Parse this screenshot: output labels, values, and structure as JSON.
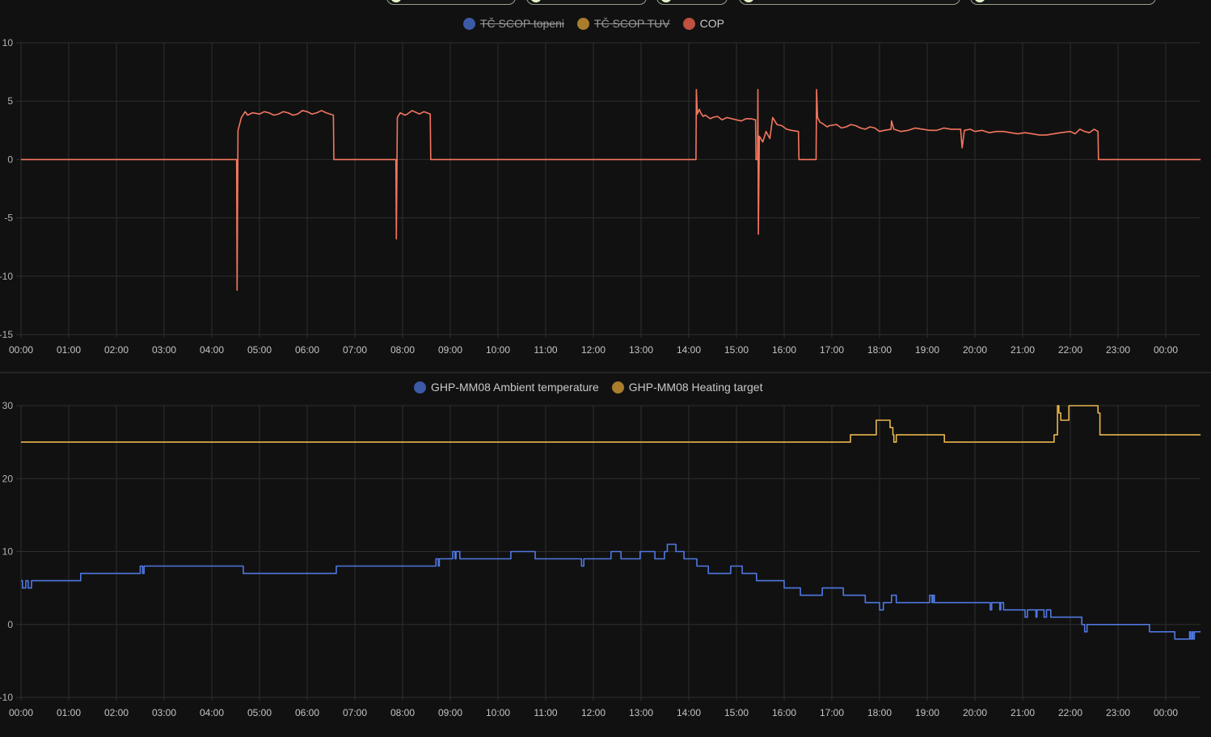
{
  "chart_data": [
    {
      "type": "line",
      "title": "",
      "xlabel": "",
      "ylabel": "",
      "x_unit": "hours since 00:00",
      "xlim": [
        0,
        24.73
      ],
      "ylim": [
        -15,
        10
      ],
      "yticks": [
        10,
        5,
        0,
        -5,
        -10,
        -15
      ],
      "xtick_labels": [
        "00:00",
        "01:00",
        "02:00",
        "03:00",
        "04:00",
        "05:00",
        "06:00",
        "07:00",
        "08:00",
        "09:00",
        "10:00",
        "11:00",
        "12:00",
        "13:00",
        "14:00",
        "15:00",
        "16:00",
        "17:00",
        "18:00",
        "19:00",
        "20:00",
        "21:00",
        "22:00",
        "23:00",
        "00:00"
      ],
      "grid": true,
      "legend_placement": "top-center",
      "legend": [
        {
          "name": "TČ SCOP topeni",
          "color": "#3b5aa8",
          "hidden": true
        },
        {
          "name": "TČ SCOP TUV",
          "color": "#a97d2c",
          "hidden": true
        },
        {
          "name": "COP",
          "color": "#c0503f",
          "hidden": false
        }
      ],
      "series": [
        {
          "name": "COP",
          "color": "#f4765f",
          "step": false,
          "points": [
            [
              0,
              0
            ],
            [
              4.52,
              0
            ],
            [
              4.53,
              -11.2
            ],
            [
              4.55,
              2.5
            ],
            [
              4.62,
              3.6
            ],
            [
              4.7,
              4.1
            ],
            [
              4.75,
              3.8
            ],
            [
              4.85,
              4.0
            ],
            [
              5.0,
              3.9
            ],
            [
              5.1,
              4.1
            ],
            [
              5.2,
              4.0
            ],
            [
              5.3,
              3.8
            ],
            [
              5.4,
              3.9
            ],
            [
              5.5,
              4.1
            ],
            [
              5.6,
              4.0
            ],
            [
              5.7,
              3.8
            ],
            [
              5.8,
              3.9
            ],
            [
              5.9,
              4.2
            ],
            [
              6.0,
              4.1
            ],
            [
              6.1,
              3.9
            ],
            [
              6.2,
              4.0
            ],
            [
              6.3,
              4.2
            ],
            [
              6.4,
              4.0
            ],
            [
              6.55,
              3.8
            ],
            [
              6.56,
              0
            ],
            [
              7.86,
              0
            ],
            [
              7.87,
              -6.8
            ],
            [
              7.89,
              3.6
            ],
            [
              7.95,
              4.0
            ],
            [
              8.05,
              3.8
            ],
            [
              8.1,
              3.9
            ],
            [
              8.2,
              4.2
            ],
            [
              8.3,
              4.0
            ],
            [
              8.35,
              3.9
            ],
            [
              8.45,
              4.1
            ],
            [
              8.58,
              3.9
            ],
            [
              8.59,
              0
            ],
            [
              14.15,
              0
            ],
            [
              14.16,
              6.0
            ],
            [
              14.18,
              3.9
            ],
            [
              14.22,
              4.3
            ],
            [
              14.25,
              4.0
            ],
            [
              14.3,
              3.7
            ],
            [
              14.35,
              3.8
            ],
            [
              14.45,
              3.5
            ],
            [
              14.5,
              3.6
            ],
            [
              14.6,
              3.7
            ],
            [
              14.7,
              3.4
            ],
            [
              14.8,
              3.6
            ],
            [
              14.9,
              3.5
            ],
            [
              15.0,
              3.4
            ],
            [
              15.1,
              3.3
            ],
            [
              15.2,
              3.5
            ],
            [
              15.3,
              3.5
            ],
            [
              15.4,
              3.4
            ],
            [
              15.41,
              0
            ],
            [
              15.44,
              0
            ],
            [
              15.45,
              6.0
            ],
            [
              15.46,
              -6.4
            ],
            [
              15.48,
              2.0
            ],
            [
              15.55,
              1.5
            ],
            [
              15.62,
              2.4
            ],
            [
              15.7,
              1.8
            ],
            [
              15.76,
              3.6
            ],
            [
              15.85,
              3.0
            ],
            [
              15.95,
              2.9
            ],
            [
              16.05,
              2.6
            ],
            [
              16.15,
              2.5
            ],
            [
              16.3,
              2.4
            ],
            [
              16.31,
              0
            ],
            [
              16.67,
              0
            ],
            [
              16.68,
              6.0
            ],
            [
              16.7,
              3.6
            ],
            [
              16.75,
              3.2
            ],
            [
              16.8,
              3.1
            ],
            [
              16.9,
              2.8
            ],
            [
              16.95,
              2.9
            ],
            [
              17.1,
              3.0
            ],
            [
              17.2,
              2.7
            ],
            [
              17.3,
              2.8
            ],
            [
              17.4,
              3.0
            ],
            [
              17.5,
              2.9
            ],
            [
              17.6,
              2.7
            ],
            [
              17.7,
              2.6
            ],
            [
              17.8,
              2.8
            ],
            [
              17.9,
              2.7
            ],
            [
              18.0,
              2.4
            ],
            [
              18.1,
              2.5
            ],
            [
              18.24,
              2.6
            ],
            [
              18.25,
              3.3
            ],
            [
              18.3,
              2.6
            ],
            [
              18.45,
              2.4
            ],
            [
              18.6,
              2.5
            ],
            [
              18.75,
              2.7
            ],
            [
              18.9,
              2.6
            ],
            [
              19.05,
              2.5
            ],
            [
              19.2,
              2.5
            ],
            [
              19.35,
              2.7
            ],
            [
              19.5,
              2.6
            ],
            [
              19.7,
              2.6
            ],
            [
              19.73,
              1.0
            ],
            [
              19.78,
              2.5
            ],
            [
              19.9,
              2.6
            ],
            [
              20.0,
              2.4
            ],
            [
              20.15,
              2.5
            ],
            [
              20.3,
              2.3
            ],
            [
              20.45,
              2.4
            ],
            [
              20.6,
              2.4
            ],
            [
              20.75,
              2.3
            ],
            [
              20.9,
              2.2
            ],
            [
              21.05,
              2.3
            ],
            [
              21.2,
              2.2
            ],
            [
              21.35,
              2.1
            ],
            [
              21.5,
              2.1
            ],
            [
              21.65,
              2.2
            ],
            [
              21.8,
              2.3
            ],
            [
              22.0,
              2.4
            ],
            [
              22.1,
              2.2
            ],
            [
              22.2,
              2.6
            ],
            [
              22.3,
              2.4
            ],
            [
              22.4,
              2.3
            ],
            [
              22.5,
              2.6
            ],
            [
              22.58,
              2.4
            ],
            [
              22.59,
              0
            ],
            [
              24.73,
              0
            ]
          ]
        }
      ]
    },
    {
      "type": "line",
      "title": "",
      "xlabel": "",
      "ylabel": "",
      "x_unit": "hours since 00:00",
      "xlim": [
        0,
        24.73
      ],
      "ylim": [
        -10,
        30
      ],
      "yticks": [
        30,
        20,
        10,
        0,
        -10
      ],
      "xtick_labels": [
        "00:00",
        "01:00",
        "02:00",
        "03:00",
        "04:00",
        "05:00",
        "06:00",
        "07:00",
        "08:00",
        "09:00",
        "10:00",
        "11:00",
        "12:00",
        "13:00",
        "14:00",
        "15:00",
        "16:00",
        "17:00",
        "18:00",
        "19:00",
        "20:00",
        "21:00",
        "22:00",
        "23:00",
        "00:00"
      ],
      "grid": true,
      "legend_placement": "top-center",
      "legend": [
        {
          "name": "GHP-MM08 Ambient temperature",
          "color": "#3b5aa8",
          "hidden": false
        },
        {
          "name": "GHP-MM08 Heating target",
          "color": "#a97d2c",
          "hidden": false
        }
      ],
      "series": [
        {
          "name": "GHP-MM08 Ambient temperature",
          "color": "#4f78e0",
          "step": true,
          "points": [
            [
              0,
              6
            ],
            [
              0.03,
              5
            ],
            [
              0.1,
              6
            ],
            [
              0.15,
              5
            ],
            [
              0.22,
              6
            ],
            [
              1.25,
              7
            ],
            [
              2.5,
              8
            ],
            [
              2.55,
              7
            ],
            [
              2.58,
              8
            ],
            [
              4.66,
              7
            ],
            [
              6.61,
              8
            ],
            [
              8.7,
              9
            ],
            [
              8.75,
              8
            ],
            [
              8.77,
              9
            ],
            [
              9.05,
              10
            ],
            [
              9.1,
              9
            ],
            [
              9.12,
              10
            ],
            [
              9.2,
              9
            ],
            [
              10.27,
              10
            ],
            [
              10.78,
              9
            ],
            [
              11.75,
              8
            ],
            [
              11.8,
              9
            ],
            [
              12.37,
              10
            ],
            [
              12.58,
              9
            ],
            [
              12.98,
              10
            ],
            [
              13.29,
              9
            ],
            [
              13.49,
              10
            ],
            [
              13.55,
              11
            ],
            [
              13.73,
              10
            ],
            [
              13.9,
              9
            ],
            [
              14.17,
              8
            ],
            [
              14.41,
              7
            ],
            [
              14.88,
              8
            ],
            [
              15.12,
              7
            ],
            [
              15.42,
              6
            ],
            [
              16.0,
              5
            ],
            [
              16.34,
              4
            ],
            [
              16.8,
              5
            ],
            [
              17.24,
              4
            ],
            [
              17.7,
              3
            ],
            [
              18.0,
              2
            ],
            [
              18.08,
              3
            ],
            [
              18.25,
              4
            ],
            [
              18.35,
              3
            ],
            [
              19.05,
              4
            ],
            [
              19.1,
              3
            ],
            [
              19.12,
              4
            ],
            [
              19.15,
              3
            ],
            [
              20.32,
              2
            ],
            [
              20.35,
              3
            ],
            [
              20.52,
              2
            ],
            [
              20.54,
              3
            ],
            [
              20.6,
              2
            ],
            [
              21.05,
              1
            ],
            [
              21.1,
              2
            ],
            [
              21.28,
              1
            ],
            [
              21.3,
              2
            ],
            [
              21.45,
              1
            ],
            [
              21.5,
              2
            ],
            [
              21.59,
              1
            ],
            [
              22.24,
              0
            ],
            [
              22.3,
              -1
            ],
            [
              22.35,
              0
            ],
            [
              23.66,
              -1
            ],
            [
              24.19,
              -2
            ],
            [
              24.5,
              -1
            ],
            [
              24.52,
              -2
            ],
            [
              24.55,
              -1
            ],
            [
              24.57,
              -2
            ],
            [
              24.6,
              -1
            ],
            [
              24.73,
              -1
            ]
          ]
        },
        {
          "name": "GHP-MM08 Heating target",
          "color": "#e8b64c",
          "step": true,
          "points": [
            [
              0,
              25
            ],
            [
              17.39,
              26
            ],
            [
              17.93,
              28
            ],
            [
              18.22,
              27
            ],
            [
              18.28,
              26
            ],
            [
              18.3,
              25
            ],
            [
              18.35,
              26
            ],
            [
              19.36,
              25
            ],
            [
              21.66,
              26
            ],
            [
              21.73,
              30
            ],
            [
              21.76,
              29
            ],
            [
              21.8,
              28
            ],
            [
              21.97,
              30
            ],
            [
              22.58,
              29
            ],
            [
              22.62,
              26
            ],
            [
              24.73,
              26
            ]
          ]
        }
      ]
    }
  ]
}
